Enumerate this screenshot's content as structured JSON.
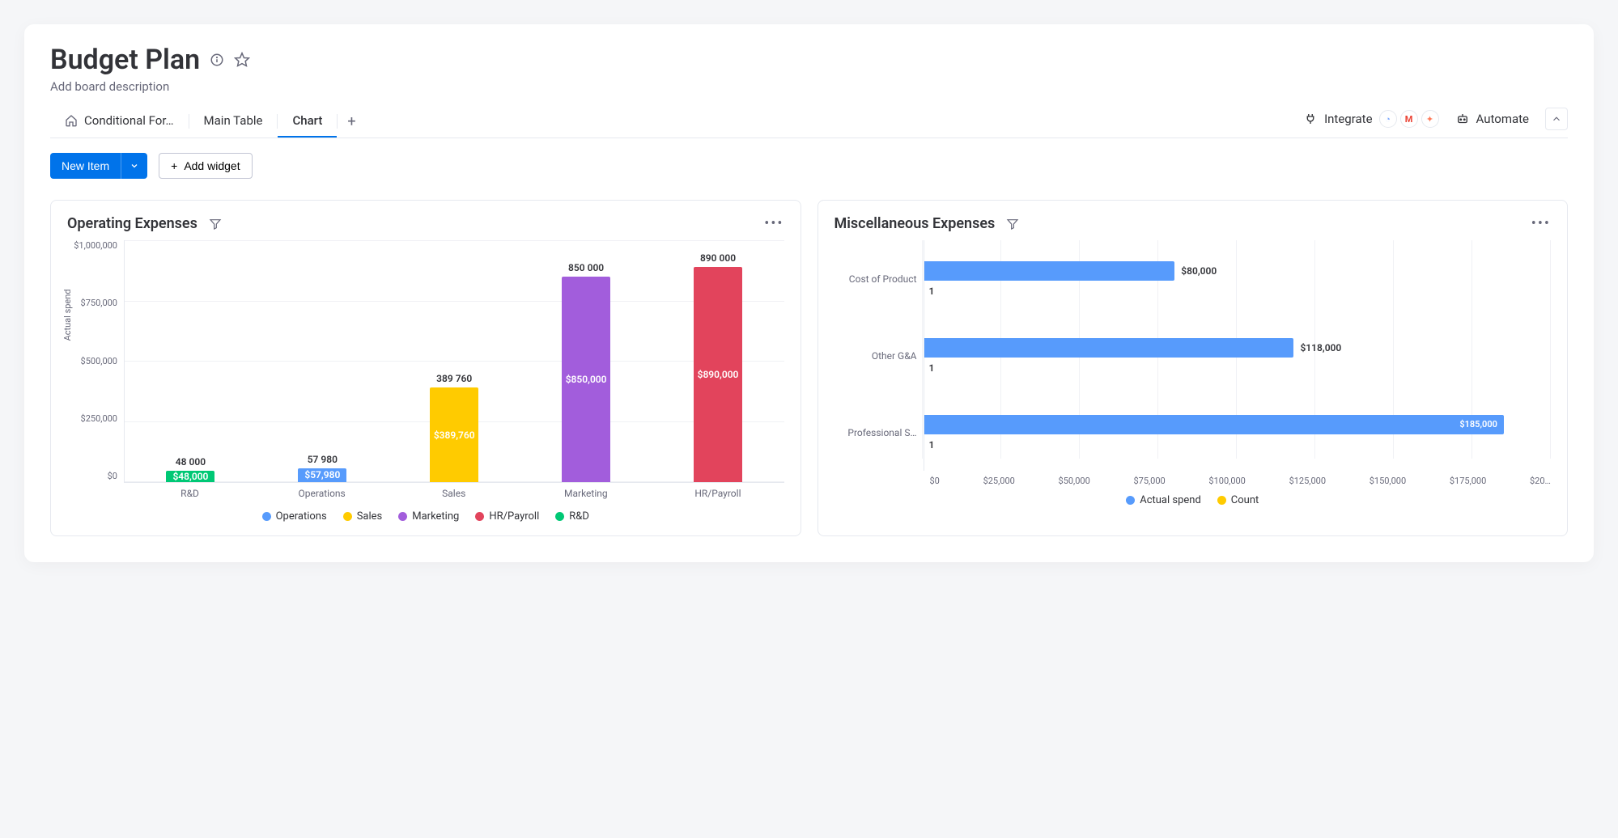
{
  "header": {
    "title": "Budget Plan",
    "description": "Add board description"
  },
  "tabs": {
    "items": [
      {
        "label": "Conditional For…",
        "icon": "home"
      },
      {
        "label": "Main Table"
      },
      {
        "label": "Chart",
        "active": true
      }
    ]
  },
  "actions": {
    "integrate": "Integrate",
    "automate": "Automate"
  },
  "toolbar": {
    "new_item": "New Item",
    "add_widget": "Add widget"
  },
  "operating_chart": {
    "title": "Operating Expenses",
    "type": "bar",
    "ylabel": "Actual spend",
    "ylim": [
      0,
      1000000
    ],
    "yticks": [
      "$1,000,000",
      "$750,000",
      "$500,000",
      "$250,000",
      "$0"
    ],
    "bars": [
      {
        "category": "R&D",
        "top_label": "48 000",
        "value": 48000,
        "inner_label": "$48,000",
        "color": "#00c875"
      },
      {
        "category": "Operations",
        "top_label": "57 980",
        "value": 57980,
        "inner_label": "$57,980",
        "color": "#579bfc"
      },
      {
        "category": "Sales",
        "top_label": "389 760",
        "value": 389760,
        "inner_label": "$389,760",
        "color": "#ffcb00"
      },
      {
        "category": "Marketing",
        "top_label": "850 000",
        "value": 850000,
        "inner_label": "$850,000",
        "color": "#a25ddc"
      },
      {
        "category": "HR/Payroll",
        "top_label": "890 000",
        "value": 890000,
        "inner_label": "$890,000",
        "color": "#e2445c"
      }
    ],
    "legend": [
      {
        "label": "Operations",
        "color": "#579bfc"
      },
      {
        "label": "Sales",
        "color": "#ffcb00"
      },
      {
        "label": "Marketing",
        "color": "#a25ddc"
      },
      {
        "label": "HR/Payroll",
        "color": "#e2445c"
      },
      {
        "label": "R&D",
        "color": "#00c875"
      }
    ]
  },
  "misc_chart": {
    "title": "Miscellaneous Expenses",
    "type": "horizontal-bar",
    "xlim": [
      0,
      200000
    ],
    "xticks": [
      "$0",
      "$25,000",
      "$50,000",
      "$75,000",
      "$100,000",
      "$125,000",
      "$150,000",
      "$175,000",
      "$20…"
    ],
    "rows": [
      {
        "category": "Cost of Product",
        "value": 80000,
        "value_label": "$80,000",
        "count": "1",
        "color": "#579bfc"
      },
      {
        "category": "Other G&A",
        "value": 118000,
        "value_label": "$118,000",
        "count": "1",
        "color": "#579bfc"
      },
      {
        "category": "Professional S…",
        "value": 185000,
        "value_label": "$185,000",
        "count": "1",
        "color": "#579bfc",
        "label_inside": true
      }
    ],
    "legend": [
      {
        "label": "Actual spend",
        "color": "#579bfc"
      },
      {
        "label": "Count",
        "color": "#ffcb00"
      }
    ]
  }
}
